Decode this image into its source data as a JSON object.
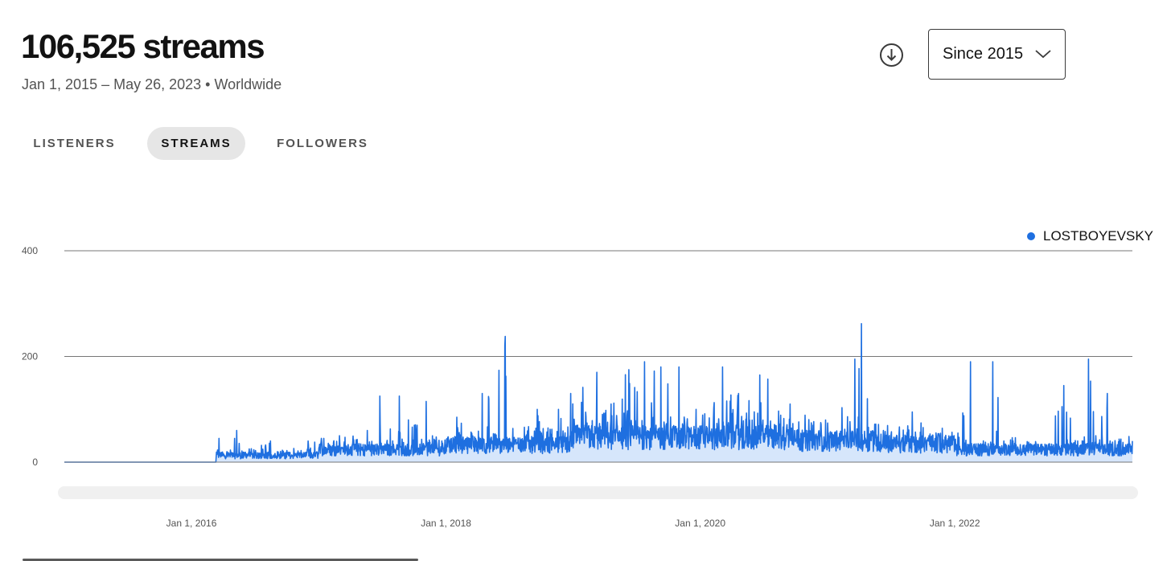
{
  "header": {
    "title": "106,525 streams",
    "date_range": "Jan 1, 2015 – May 26, 2023",
    "separator": "•",
    "region": "Worldwide"
  },
  "controls": {
    "download_icon": "download-circle-icon",
    "range_select": {
      "value": "Since 2015",
      "icon": "chevron-down-icon"
    }
  },
  "tabs": [
    {
      "label": "LISTENERS",
      "active": false
    },
    {
      "label": "STREAMS",
      "active": true
    },
    {
      "label": "FOLLOWERS",
      "active": false
    }
  ],
  "colors": {
    "series": "#1e6fe0",
    "fill": "#d6e6fb",
    "grid": "#777777",
    "scrubber": "#f0f0f0"
  },
  "chart_data": {
    "type": "area",
    "title": "",
    "xlabel": "",
    "ylabel": "",
    "ylim": [
      0,
      400
    ],
    "yticks": [
      "0",
      "200",
      "400"
    ],
    "xlim": [
      "2015-01-01",
      "2023-05-26"
    ],
    "xticks": [
      "Jan 1, 2016",
      "Jan 1, 2018",
      "Jan 1, 2020",
      "Jan 1, 2022"
    ],
    "grid": true,
    "legend_position": "top-right",
    "series": [
      {
        "name": "LOSTBOYEVSKY",
        "resolution": "approximate daily values; baseline and notable peaks read from the chart",
        "points": [
          [
            "2015-01-01",
            0
          ],
          [
            "2016-03-10",
            0
          ],
          [
            "2016-03-20",
            45
          ],
          [
            "2016-04-15",
            20
          ],
          [
            "2016-05-10",
            60
          ],
          [
            "2016-06-15",
            25
          ],
          [
            "2016-08-15",
            40
          ],
          [
            "2016-10-01",
            22
          ],
          [
            "2016-12-01",
            40
          ],
          [
            "2017-01-15",
            45
          ],
          [
            "2017-03-01",
            50
          ],
          [
            "2017-05-20",
            60
          ],
          [
            "2017-06-25",
            125
          ],
          [
            "2017-07-10",
            30
          ],
          [
            "2017-08-20",
            125
          ],
          [
            "2017-10-10",
            70
          ],
          [
            "2017-11-05",
            115
          ],
          [
            "2017-12-20",
            40
          ],
          [
            "2018-02-01",
            85
          ],
          [
            "2018-03-15",
            40
          ],
          [
            "2018-04-15",
            130
          ],
          [
            "2018-06-20",
            238
          ],
          [
            "2018-07-10",
            40
          ],
          [
            "2018-09-20",
            100
          ],
          [
            "2018-11-20",
            100
          ],
          [
            "2018-12-25",
            130
          ],
          [
            "2019-03-10",
            170
          ],
          [
            "2019-04-20",
            110
          ],
          [
            "2019-06-10",
            175
          ],
          [
            "2019-07-25",
            190
          ],
          [
            "2019-09-10",
            180
          ],
          [
            "2019-11-01",
            180
          ],
          [
            "2019-12-20",
            100
          ],
          [
            "2020-03-05",
            180
          ],
          [
            "2020-04-20",
            130
          ],
          [
            "2020-06-20",
            165
          ],
          [
            "2020-09-15",
            110
          ],
          [
            "2020-11-20",
            70
          ],
          [
            "2021-01-15",
            60
          ],
          [
            "2021-03-20",
            195
          ],
          [
            "2021-04-08",
            262
          ],
          [
            "2021-04-25",
            120
          ],
          [
            "2021-06-10",
            60
          ],
          [
            "2021-09-01",
            95
          ],
          [
            "2021-12-15",
            50
          ],
          [
            "2022-01-10",
            55
          ],
          [
            "2022-02-15",
            190
          ],
          [
            "2022-03-15",
            35
          ],
          [
            "2022-04-20",
            190
          ],
          [
            "2022-06-20",
            25
          ],
          [
            "2022-09-20",
            30
          ],
          [
            "2022-11-10",
            145
          ],
          [
            "2022-12-20",
            40
          ],
          [
            "2023-01-20",
            195
          ],
          [
            "2023-02-10",
            50
          ],
          [
            "2023-03-15",
            130
          ],
          [
            "2023-04-20",
            40
          ],
          [
            "2023-05-26",
            40
          ]
        ]
      }
    ]
  }
}
